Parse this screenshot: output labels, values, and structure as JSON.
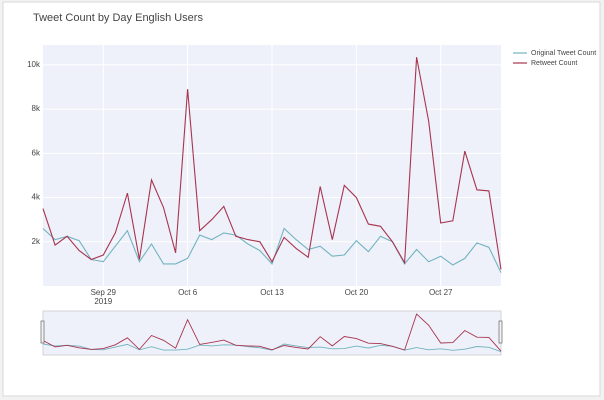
{
  "chart_data": {
    "type": "line",
    "title": "Tweet Count by Day English Users",
    "x": [
      "2019-09-24",
      "2019-09-25",
      "2019-09-26",
      "2019-09-27",
      "2019-09-28",
      "2019-09-29",
      "2019-09-30",
      "2019-10-01",
      "2019-10-02",
      "2019-10-03",
      "2019-10-04",
      "2019-10-05",
      "2019-10-06",
      "2019-10-07",
      "2019-10-08",
      "2019-10-09",
      "2019-10-10",
      "2019-10-11",
      "2019-10-12",
      "2019-10-13",
      "2019-10-14",
      "2019-10-15",
      "2019-10-16",
      "2019-10-17",
      "2019-10-18",
      "2019-10-19",
      "2019-10-20",
      "2019-10-21",
      "2019-10-22",
      "2019-10-23",
      "2019-10-24",
      "2019-10-25",
      "2019-10-26",
      "2019-10-27",
      "2019-10-28",
      "2019-10-29",
      "2019-10-30",
      "2019-10-31",
      "2019-11-01"
    ],
    "series": [
      {
        "name": "Original Tweet Count",
        "color": "#72b3c0",
        "values": [
          2600,
          2100,
          2250,
          2050,
          1200,
          1100,
          1800,
          2500,
          1100,
          1900,
          1000,
          1000,
          1250,
          2300,
          2100,
          2400,
          2300,
          1900,
          1600,
          1000,
          2600,
          2100,
          1650,
          1800,
          1350,
          1400,
          2050,
          1550,
          2250,
          2000,
          1000,
          1650,
          1100,
          1350,
          950,
          1250,
          1950,
          1750,
          600
        ]
      },
      {
        "name": "Retweet Count",
        "color": "#a8344f",
        "values": [
          3500,
          1850,
          2250,
          1600,
          1200,
          1400,
          2400,
          4200,
          1200,
          4800,
          3550,
          1500,
          8900,
          2500,
          3000,
          3600,
          2250,
          2100,
          2000,
          1100,
          2200,
          1700,
          1300,
          4500,
          2100,
          4550,
          4000,
          2800,
          2700,
          2000,
          1050,
          10350,
          7450,
          2850,
          2950,
          6100,
          4350,
          4300,
          750
        ]
      }
    ],
    "xlim": [
      "2019-09-24",
      "2019-11-01"
    ],
    "xticks": [
      {
        "value": "2019-09-29",
        "label": "Sep 29"
      },
      {
        "value": "2019-10-06",
        "label": "Oct 6"
      },
      {
        "value": "2019-10-13",
        "label": "Oct 13"
      },
      {
        "value": "2019-10-20",
        "label": "Oct 20"
      },
      {
        "value": "2019-10-27",
        "label": "Oct 27"
      }
    ],
    "x_year_label": "2019",
    "ylim": [
      0,
      10900
    ],
    "yticks": [
      {
        "value": 2000,
        "label": "2k"
      },
      {
        "value": 4000,
        "label": "4k"
      },
      {
        "value": 6000,
        "label": "6k"
      },
      {
        "value": 8000,
        "label": "8k"
      },
      {
        "value": 10000,
        "label": "10k"
      }
    ],
    "grid": true,
    "legend": "top-right",
    "range_slider": true
  }
}
